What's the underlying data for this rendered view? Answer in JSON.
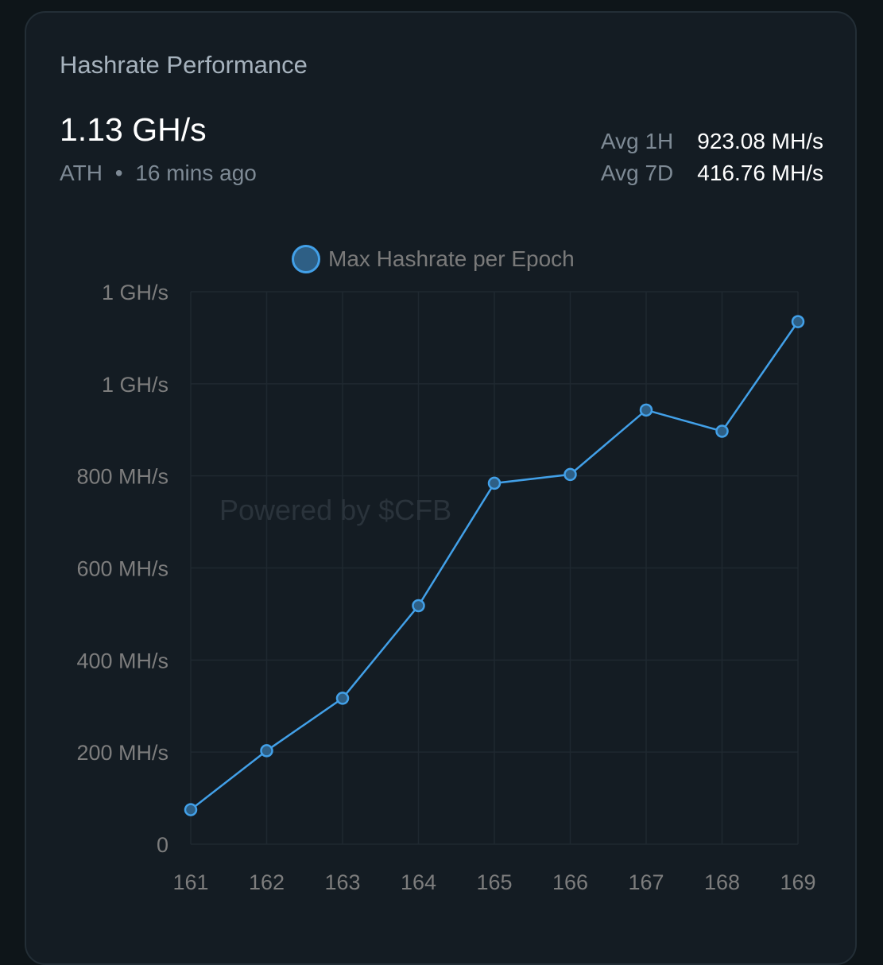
{
  "card": {
    "title": "Hashrate Performance",
    "big_value": "1.13 GH/s",
    "ath_label": "ATH",
    "separator": "•",
    "ath_time": "16 mins ago",
    "avg_1h_label": "Avg 1H",
    "avg_1h_value": "923.08 MH/s",
    "avg_7d_label": "Avg 7D",
    "avg_7d_value": "416.76 MH/s",
    "watermark": "Powered by $CFB"
  },
  "colors": {
    "line": "#42a0e8",
    "point_fill": "#2e5f85",
    "grid": "#1f2830",
    "axis_text": "#7d7d7d"
  },
  "chart_data": {
    "type": "line",
    "legend_position": "top-center",
    "grid": true,
    "series": [
      {
        "name": "Max Hashrate per Epoch",
        "values": [
          75,
          203,
          317,
          518,
          784,
          803,
          943,
          897,
          1135
        ]
      }
    ],
    "categories": [
      "161",
      "162",
      "163",
      "164",
      "165",
      "166",
      "167",
      "168",
      "169"
    ],
    "ylim": [
      0,
      1200
    ],
    "yticks": [
      0,
      200,
      400,
      600,
      800,
      1000,
      1200
    ],
    "ytick_labels": [
      "0",
      "200 MH/s",
      "400 MH/s",
      "600 MH/s",
      "800 MH/s",
      "1 GH/s",
      "1 GH/s"
    ]
  }
}
